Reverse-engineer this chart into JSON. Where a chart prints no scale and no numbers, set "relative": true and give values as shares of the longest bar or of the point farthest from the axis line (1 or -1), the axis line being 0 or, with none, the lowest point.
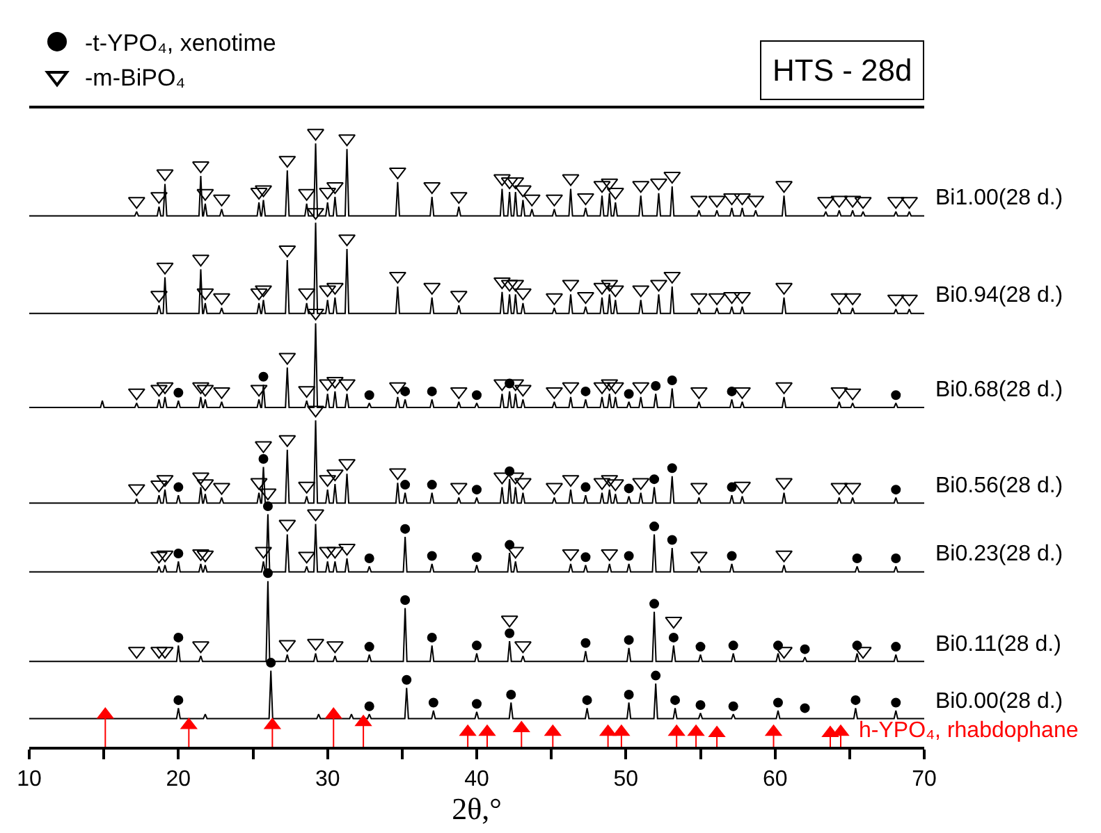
{
  "chart_data": {
    "type": "line",
    "title": "HTS - 28d",
    "xlabel": "2θ,°",
    "relative": true,
    "xlim": [
      10,
      70
    ],
    "xticks": [
      10,
      {
        "value": 15,
        "label": null
      },
      20,
      {
        "value": 25,
        "label": null
      },
      30,
      {
        "value": 35,
        "label": null
      },
      40,
      {
        "value": 45,
        "label": null
      },
      50,
      {
        "value": 55,
        "label": null
      },
      60,
      {
        "value": 65,
        "label": null
      },
      70
    ],
    "tick_labels": "x",
    "legend": "top left",
    "series": [
      {
        "name": "Bi1.00(28 d.)",
        "color": "#000000",
        "x": [
          10,
          17.08,
          17.2,
          17.32,
          18.58,
          18.7,
          18.82,
          18.98,
          19.1,
          19.22,
          21.38,
          21.5,
          21.62,
          21.68,
          21.8,
          21.92,
          22.78,
          22.9,
          23.02,
          25.28,
          25.4,
          25.52,
          25.58,
          25.7,
          25.82,
          27.18,
          27.3,
          27.42,
          28.48,
          28.6,
          28.72,
          29.08,
          29.2,
          29.32,
          29.88,
          30.0,
          30.12,
          30.38,
          30.5,
          30.62,
          31.18,
          31.3,
          31.42,
          34.58,
          34.7,
          34.82,
          36.88,
          37.0,
          37.12,
          38.68,
          38.8,
          38.92,
          41.58,
          41.7,
          41.82,
          42.08,
          42.2,
          42.32,
          42.48,
          42.6,
          42.72,
          42.98,
          43.1,
          43.22,
          43.58,
          43.7,
          43.82,
          45.08,
          45.2,
          45.32,
          46.18,
          46.3,
          46.42,
          47.18,
          47.3,
          47.42,
          48.28,
          48.4,
          48.52,
          48.78,
          48.9,
          49.02,
          49.18,
          49.3,
          49.42,
          50.88,
          51.0,
          51.12,
          52.08,
          52.2,
          52.32,
          52.98,
          53.1,
          53.22,
          54.78,
          54.9,
          55.02,
          55.98,
          56.1,
          56.22,
          56.98,
          57.1,
          57.22,
          57.68,
          57.8,
          57.92,
          58.58,
          58.7,
          58.82,
          60.48,
          60.6,
          60.72,
          63.28,
          63.4,
          63.52,
          64.18,
          64.3,
          64.42,
          65.08,
          65.2,
          65.32,
          65.78,
          65.9,
          66.02,
          67.98,
          68.1,
          68.22,
          68.88,
          69.0,
          69.12,
          70
        ],
        "values": [
          0.865,
          0.865,
          0.872,
          0.865,
          0.865,
          0.88,
          0.865,
          0.865,
          0.917,
          0.865,
          0.865,
          0.93,
          0.865,
          0.865,
          0.885,
          0.865,
          0.865,
          0.876,
          0.865,
          0.865,
          0.887,
          0.865,
          0.865,
          0.891,
          0.865,
          0.865,
          0.939,
          0.865,
          0.865,
          0.885,
          0.865,
          0.865,
          0.983,
          0.865,
          0.865,
          0.887,
          0.865,
          0.865,
          0.896,
          0.865,
          0.865,
          0.974,
          0.865,
          0.865,
          0.92,
          0.865,
          0.865,
          0.896,
          0.865,
          0.865,
          0.88,
          0.865,
          0.865,
          0.909,
          0.865,
          0.865,
          0.904,
          0.865,
          0.865,
          0.904,
          0.865,
          0.865,
          0.891,
          0.865,
          0.865,
          0.876,
          0.865,
          0.865,
          0.876,
          0.865,
          0.865,
          0.909,
          0.865,
          0.865,
          0.878,
          0.865,
          0.865,
          0.898,
          0.865,
          0.865,
          0.902,
          0.865,
          0.865,
          0.887,
          0.865,
          0.865,
          0.898,
          0.865,
          0.865,
          0.902,
          0.865,
          0.865,
          0.913,
          0.865,
          0.865,
          0.874,
          0.865,
          0.865,
          0.874,
          0.865,
          0.865,
          0.878,
          0.865,
          0.865,
          0.878,
          0.865,
          0.865,
          0.874,
          0.865,
          0.865,
          0.898,
          0.865,
          0.865,
          0.872,
          0.865,
          0.865,
          0.874,
          0.865,
          0.865,
          0.874,
          0.865,
          0.865,
          0.872,
          0.865,
          0.865,
          0.872,
          0.865,
          0.865,
          0.872,
          0.865,
          0.865
        ]
      },
      {
        "name": "Bi0.94(28 d.)",
        "color": "#000000",
        "x": [
          10,
          18.58,
          18.7,
          18.82,
          18.98,
          19.1,
          19.22,
          21.38,
          21.5,
          21.62,
          21.68,
          21.8,
          21.92,
          22.78,
          22.9,
          23.02,
          25.28,
          25.4,
          25.52,
          25.58,
          25.7,
          25.82,
          27.18,
          27.3,
          27.42,
          28.48,
          28.6,
          28.72,
          29.08,
          29.2,
          29.32,
          29.88,
          30.0,
          30.12,
          30.38,
          30.5,
          30.62,
          31.18,
          31.3,
          31.42,
          34.58,
          34.7,
          34.82,
          36.88,
          37.0,
          37.12,
          38.68,
          38.8,
          38.92,
          41.58,
          41.7,
          41.82,
          42.08,
          42.2,
          42.32,
          42.48,
          42.6,
          42.72,
          42.98,
          43.1,
          43.22,
          45.08,
          45.2,
          45.32,
          46.18,
          46.3,
          46.42,
          47.18,
          47.3,
          47.42,
          48.28,
          48.4,
          48.52,
          48.78,
          48.9,
          49.02,
          49.18,
          49.3,
          49.42,
          50.88,
          51.0,
          51.12,
          52.08,
          52.2,
          52.32,
          52.98,
          53.1,
          53.22,
          54.78,
          54.9,
          55.02,
          55.98,
          56.1,
          56.22,
          56.98,
          57.1,
          57.22,
          57.68,
          57.8,
          57.92,
          60.48,
          60.6,
          60.72,
          64.18,
          64.3,
          64.42,
          65.08,
          65.2,
          65.32,
          67.98,
          68.1,
          68.22,
          68.88,
          69.0,
          69.12,
          70
        ],
        "values": [
          0.706,
          0.706,
          0.719,
          0.706,
          0.706,
          0.765,
          0.706,
          0.706,
          0.778,
          0.706,
          0.706,
          0.723,
          0.706,
          0.706,
          0.715,
          0.706,
          0.706,
          0.723,
          0.706,
          0.706,
          0.728,
          0.706,
          0.706,
          0.793,
          0.706,
          0.706,
          0.723,
          0.706,
          0.706,
          0.854,
          0.706,
          0.706,
          0.728,
          0.706,
          0.706,
          0.732,
          0.706,
          0.706,
          0.811,
          0.706,
          0.706,
          0.75,
          0.706,
          0.706,
          0.732,
          0.706,
          0.706,
          0.719,
          0.706,
          0.706,
          0.741,
          0.706,
          0.706,
          0.737,
          0.706,
          0.706,
          0.737,
          0.706,
          0.706,
          0.723,
          0.706,
          0.706,
          0.715,
          0.706,
          0.706,
          0.737,
          0.706,
          0.706,
          0.717,
          0.706,
          0.706,
          0.732,
          0.706,
          0.706,
          0.737,
          0.706,
          0.706,
          0.728,
          0.706,
          0.706,
          0.728,
          0.706,
          0.706,
          0.737,
          0.706,
          0.706,
          0.75,
          0.706,
          0.706,
          0.715,
          0.706,
          0.706,
          0.715,
          0.706,
          0.706,
          0.717,
          0.706,
          0.706,
          0.717,
          0.706,
          0.706,
          0.732,
          0.706,
          0.706,
          0.715,
          0.706,
          0.706,
          0.715,
          0.706,
          0.706,
          0.713,
          0.706,
          0.706,
          0.713,
          0.706,
          0.706
        ]
      },
      {
        "name": "Bi0.68(28 d.)",
        "color": "#000000",
        "x": [
          10,
          14.78,
          14.9,
          15.02,
          17.08,
          17.2,
          17.32,
          18.58,
          18.7,
          18.82,
          18.98,
          19.1,
          19.22,
          19.88,
          20.0,
          20.12,
          21.38,
          21.5,
          21.62,
          21.68,
          21.8,
          21.92,
          22.78,
          22.9,
          23.02,
          25.28,
          25.4,
          25.52,
          25.58,
          25.7,
          25.82,
          27.18,
          27.3,
          27.42,
          28.48,
          28.6,
          28.72,
          29.08,
          29.2,
          29.32,
          29.88,
          30.0,
          30.12,
          30.38,
          30.5,
          30.62,
          31.18,
          31.3,
          31.42,
          32.68,
          32.8,
          32.92,
          34.58,
          34.7,
          34.82,
          35.08,
          35.2,
          35.32,
          36.88,
          37.0,
          37.12,
          38.68,
          38.8,
          38.92,
          39.88,
          40.0,
          40.12,
          41.58,
          41.7,
          41.82,
          42.08,
          42.2,
          42.32,
          42.48,
          42.6,
          42.72,
          42.98,
          43.1,
          43.22,
          45.08,
          45.2,
          45.32,
          46.18,
          46.3,
          46.42,
          47.18,
          47.3,
          47.42,
          48.28,
          48.4,
          48.52,
          48.78,
          48.9,
          49.02,
          49.18,
          49.3,
          49.42,
          50.08,
          50.2,
          50.32,
          50.88,
          51.0,
          51.12,
          51.88,
          52.0,
          52.12,
          52.98,
          53.1,
          53.22,
          54.78,
          54.9,
          55.02,
          56.98,
          57.1,
          57.22,
          57.68,
          57.8,
          57.92,
          60.48,
          60.6,
          60.72,
          64.18,
          64.3,
          64.42,
          65.08,
          65.2,
          65.32,
          67.98,
          68.1,
          68.22,
          70
        ],
        "values": [
          0.553,
          0.553,
          0.564,
          0.553,
          0.553,
          0.56,
          0.553,
          0.553,
          0.566,
          0.553,
          0.553,
          0.57,
          0.553,
          0.553,
          0.564,
          0.553,
          0.553,
          0.57,
          0.553,
          0.553,
          0.566,
          0.553,
          0.553,
          0.562,
          0.553,
          0.553,
          0.566,
          0.553,
          0.553,
          0.59,
          0.553,
          0.553,
          0.618,
          0.553,
          0.553,
          0.564,
          0.553,
          0.553,
          0.69,
          0.553,
          0.553,
          0.575,
          0.553,
          0.553,
          0.579,
          0.553,
          0.553,
          0.575,
          0.553,
          0.553,
          0.56,
          0.553,
          0.553,
          0.57,
          0.553,
          0.553,
          0.566,
          0.553,
          0.553,
          0.566,
          0.553,
          0.553,
          0.562,
          0.553,
          0.553,
          0.56,
          0.553,
          0.553,
          0.575,
          0.553,
          0.553,
          0.579,
          0.553,
          0.553,
          0.575,
          0.553,
          0.553,
          0.566,
          0.553,
          0.553,
          0.562,
          0.553,
          0.553,
          0.57,
          0.553,
          0.553,
          0.566,
          0.553,
          0.553,
          0.57,
          0.553,
          0.553,
          0.575,
          0.553,
          0.553,
          0.57,
          0.553,
          0.553,
          0.562,
          0.553,
          0.553,
          0.57,
          0.553,
          0.553,
          0.575,
          0.553,
          0.553,
          0.584,
          0.553,
          0.553,
          0.562,
          0.553,
          0.553,
          0.566,
          0.553,
          0.553,
          0.562,
          0.553,
          0.553,
          0.57,
          0.553,
          0.553,
          0.562,
          0.553,
          0.553,
          0.56,
          0.553,
          0.553,
          0.56,
          0.553,
          0.553
        ]
      },
      {
        "name": "Bi0.56(28 d.)",
        "color": "#000000",
        "x": [
          10,
          17.08,
          17.2,
          17.32,
          18.58,
          18.7,
          18.82,
          18.98,
          19.1,
          19.22,
          19.88,
          20.0,
          20.12,
          21.38,
          21.5,
          21.62,
          21.68,
          21.8,
          21.92,
          22.78,
          22.9,
          23.02,
          25.28,
          25.4,
          25.52,
          25.58,
          25.7,
          25.82,
          27.18,
          27.3,
          27.42,
          28.48,
          28.6,
          28.72,
          29.08,
          29.2,
          29.32,
          29.88,
          30.0,
          30.12,
          30.38,
          30.5,
          30.62,
          31.18,
          31.3,
          31.42,
          34.58,
          34.7,
          34.82,
          35.08,
          35.2,
          35.32,
          36.88,
          37.0,
          37.12,
          38.68,
          38.8,
          38.92,
          39.88,
          40.0,
          40.12,
          41.58,
          41.7,
          41.82,
          42.08,
          42.2,
          42.32,
          42.48,
          42.6,
          42.72,
          42.98,
          43.1,
          43.22,
          45.08,
          45.2,
          45.32,
          46.18,
          46.3,
          46.42,
          47.18,
          47.3,
          47.42,
          48.28,
          48.4,
          48.52,
          48.78,
          48.9,
          49.02,
          49.18,
          49.3,
          49.42,
          50.08,
          50.2,
          50.32,
          50.88,
          51.0,
          51.12,
          51.78,
          51.9,
          52.02,
          52.98,
          53.1,
          53.22,
          54.78,
          54.9,
          55.02,
          56.98,
          57.1,
          57.22,
          57.68,
          57.8,
          57.92,
          60.48,
          60.6,
          60.72,
          64.18,
          64.3,
          64.42,
          65.08,
          65.2,
          65.32,
          67.98,
          68.1,
          68.22,
          70
        ],
        "values": [
          0.397,
          0.397,
          0.404,
          0.397,
          0.397,
          0.41,
          0.397,
          0.397,
          0.419,
          0.397,
          0.397,
          0.41,
          0.397,
          0.397,
          0.423,
          0.397,
          0.397,
          0.412,
          0.397,
          0.397,
          0.406,
          0.397,
          0.397,
          0.414,
          0.397,
          0.397,
          0.456,
          0.397,
          0.397,
          0.484,
          0.397,
          0.397,
          0.408,
          0.397,
          0.397,
          0.532,
          0.397,
          0.397,
          0.419,
          0.397,
          0.397,
          0.428,
          0.397,
          0.397,
          0.445,
          0.397,
          0.397,
          0.43,
          0.397,
          0.397,
          0.414,
          0.397,
          0.397,
          0.414,
          0.397,
          0.397,
          0.406,
          0.397,
          0.397,
          0.406,
          0.397,
          0.397,
          0.423,
          0.397,
          0.397,
          0.436,
          0.397,
          0.397,
          0.423,
          0.397,
          0.397,
          0.414,
          0.397,
          0.397,
          0.406,
          0.397,
          0.397,
          0.419,
          0.397,
          0.397,
          0.41,
          0.397,
          0.397,
          0.414,
          0.397,
          0.397,
          0.419,
          0.397,
          0.397,
          0.412,
          0.397,
          0.397,
          0.408,
          0.397,
          0.397,
          0.414,
          0.397,
          0.397,
          0.423,
          0.397,
          0.397,
          0.441,
          0.397,
          0.397,
          0.406,
          0.397,
          0.397,
          0.41,
          0.397,
          0.397,
          0.408,
          0.397,
          0.397,
          0.414,
          0.397,
          0.397,
          0.406,
          0.397,
          0.397,
          0.406,
          0.397,
          0.397,
          0.406,
          0.397,
          0.397
        ]
      },
      {
        "name": "Bi0.23(28 d.)",
        "color": "#000000",
        "x": [
          10,
          18.58,
          18.7,
          18.82,
          18.98,
          19.1,
          19.22,
          19.88,
          20.0,
          20.12,
          21.38,
          21.5,
          21.62,
          21.68,
          21.8,
          21.92,
          25.58,
          25.7,
          25.82,
          25.88,
          26.0,
          26.12,
          27.18,
          27.3,
          27.42,
          28.48,
          28.6,
          28.72,
          29.08,
          29.2,
          29.32,
          29.88,
          30.0,
          30.12,
          30.38,
          30.5,
          30.62,
          31.18,
          31.3,
          31.42,
          32.68,
          32.8,
          32.92,
          35.08,
          35.2,
          35.32,
          36.88,
          37.0,
          37.12,
          39.88,
          40.0,
          40.12,
          42.08,
          42.2,
          42.32,
          42.48,
          42.6,
          42.72,
          46.18,
          46.3,
          46.42,
          47.18,
          47.3,
          47.42,
          48.78,
          48.9,
          49.02,
          50.08,
          50.2,
          50.32,
          51.78,
          51.9,
          52.02,
          52.98,
          53.1,
          53.22,
          54.78,
          54.9,
          55.02,
          56.98,
          57.1,
          57.22,
          60.48,
          60.6,
          60.72,
          65.38,
          65.5,
          65.62,
          67.98,
          68.1,
          68.22,
          70
        ],
        "values": [
          0.285,
          0.285,
          0.294,
          0.285,
          0.285,
          0.296,
          0.285,
          0.285,
          0.302,
          0.285,
          0.285,
          0.298,
          0.285,
          0.285,
          0.296,
          0.285,
          0.285,
          0.302,
          0.285,
          0.285,
          0.379,
          0.285,
          0.285,
          0.346,
          0.285,
          0.285,
          0.294,
          0.285,
          0.285,
          0.363,
          0.285,
          0.285,
          0.302,
          0.285,
          0.285,
          0.302,
          0.285,
          0.285,
          0.307,
          0.285,
          0.285,
          0.294,
          0.285,
          0.285,
          0.342,
          0.285,
          0.285,
          0.298,
          0.285,
          0.285,
          0.296,
          0.285,
          0.285,
          0.316,
          0.285,
          0.285,
          0.302,
          0.285,
          0.285,
          0.298,
          0.285,
          0.285,
          0.296,
          0.285,
          0.285,
          0.298,
          0.285,
          0.285,
          0.298,
          0.285,
          0.285,
          0.346,
          0.285,
          0.285,
          0.324,
          0.285,
          0.285,
          0.294,
          0.285,
          0.285,
          0.298,
          0.285,
          0.285,
          0.296,
          0.285,
          0.285,
          0.294,
          0.285,
          0.285,
          0.294,
          0.285,
          0.285
        ]
      },
      {
        "name": "Bi0.11(28 d.)",
        "color": "#000000",
        "x": [
          10,
          19.88,
          20.0,
          20.12,
          21.38,
          21.5,
          21.62,
          25.88,
          26.0,
          26.12,
          27.18,
          27.3,
          27.42,
          29.08,
          29.2,
          29.32,
          30.38,
          30.5,
          30.62,
          32.68,
          32.8,
          32.92,
          35.08,
          35.2,
          35.32,
          36.88,
          37.0,
          37.12,
          39.88,
          40.0,
          40.12,
          42.08,
          42.2,
          42.32,
          42.98,
          43.1,
          43.22,
          47.18,
          47.3,
          47.42,
          50.08,
          50.2,
          50.32,
          51.78,
          51.9,
          52.02,
          53.08,
          53.2,
          53.32,
          54.88,
          55.0,
          55.12,
          57.08,
          57.2,
          57.32,
          60.08,
          60.2,
          60.32,
          61.88,
          62.0,
          62.12,
          65.38,
          65.5,
          65.62,
          67.98,
          68.1,
          68.22,
          70
        ],
        "values": [
          0.139,
          0.139,
          0.165,
          0.139,
          0.139,
          0.148,
          0.139,
          0.139,
          0.27,
          0.139,
          0.139,
          0.15,
          0.139,
          0.139,
          0.152,
          0.139,
          0.139,
          0.148,
          0.139,
          0.139,
          0.15,
          0.139,
          0.139,
          0.226,
          0.139,
          0.139,
          0.165,
          0.139,
          0.139,
          0.152,
          0.139,
          0.139,
          0.172,
          0.139,
          0.139,
          0.148,
          0.139,
          0.139,
          0.156,
          0.139,
          0.139,
          0.161,
          0.139,
          0.139,
          0.22,
          0.139,
          0.139,
          0.165,
          0.139,
          0.139,
          0.15,
          0.139,
          0.139,
          0.152,
          0.139,
          0.139,
          0.152,
          0.139,
          0.139,
          0.146,
          0.139,
          0.139,
          0.152,
          0.139,
          0.139,
          0.15,
          0.139,
          0.139
        ]
      },
      {
        "name": "Bi0.00(28 d.)",
        "color": "#000000",
        "x": [
          10,
          19.88,
          20.0,
          20.12,
          21.68,
          21.8,
          21.92,
          26.08,
          26.2,
          26.32,
          29.28,
          29.4,
          29.52,
          31.48,
          31.6,
          31.72,
          32.68,
          32.8,
          32.92,
          35.18,
          35.3,
          35.42,
          36.98,
          37.1,
          37.22,
          39.88,
          40.0,
          40.12,
          42.18,
          42.3,
          42.42,
          47.28,
          47.4,
          47.52,
          50.08,
          50.2,
          50.32,
          51.88,
          52.0,
          52.12,
          53.18,
          53.3,
          53.42,
          54.88,
          55.0,
          55.12,
          57.08,
          57.2,
          57.32,
          60.08,
          60.2,
          60.32,
          65.28,
          65.4,
          65.52,
          67.98,
          68.1,
          68.22,
          70
        ],
        "values": [
          0.046,
          0.046,
          0.063,
          0.046,
          0.046,
          0.053,
          0.046,
          0.046,
          0.124,
          0.046,
          0.046,
          0.053,
          0.046,
          0.046,
          0.053,
          0.046,
          0.046,
          0.053,
          0.046,
          0.046,
          0.096,
          0.046,
          0.046,
          0.059,
          0.046,
          0.046,
          0.057,
          0.046,
          0.046,
          0.072,
          0.046,
          0.046,
          0.063,
          0.046,
          0.046,
          0.072,
          0.046,
          0.046,
          0.103,
          0.046,
          0.046,
          0.063,
          0.046,
          0.046,
          0.055,
          0.046,
          0.046,
          0.053,
          0.046,
          0.046,
          0.059,
          0.046,
          0.046,
          0.063,
          0.046,
          0.046,
          0.059,
          0.046,
          0.046
        ]
      },
      {
        "name": "-t-YPO₄, xenotime",
        "type": "scatter",
        "marker": "circle",
        "color": "#000000",
        "x": [
          20.0,
          25.7,
          32.8,
          35.2,
          37.0,
          40.0,
          42.2,
          47.3,
          50.2,
          52.0,
          53.1,
          57.1,
          68.1,
          20.0,
          25.7,
          35.2,
          37.0,
          40.0,
          42.2,
          47.3,
          50.2,
          51.9,
          53.1,
          57.1,
          68.1,
          20.0,
          26.0,
          32.8,
          35.2,
          37.0,
          40.0,
          42.2,
          47.3,
          50.2,
          51.9,
          53.1,
          57.1,
          65.5,
          68.1,
          20.0,
          26.0,
          32.8,
          35.2,
          37.0,
          40.0,
          42.2,
          47.3,
          50.2,
          51.9,
          53.2,
          55.0,
          57.2,
          60.2,
          62.0,
          65.5,
          68.1,
          20.0,
          26.2,
          32.8,
          35.3,
          37.1,
          40.0,
          42.3,
          47.4,
          50.2,
          52.0,
          53.3,
          55.0,
          57.2,
          60.2,
          62.0,
          65.4,
          68.1
        ],
        "values": [
          0.577,
          0.603,
          0.573,
          0.579,
          0.579,
          0.573,
          0.592,
          0.579,
          0.575,
          0.588,
          0.597,
          0.579,
          0.573,
          0.423,
          0.469,
          0.427,
          0.427,
          0.419,
          0.449,
          0.423,
          0.421,
          0.436,
          0.454,
          0.423,
          0.419,
          0.315,
          0.392,
          0.307,
          0.355,
          0.311,
          0.309,
          0.329,
          0.309,
          0.311,
          0.359,
          0.337,
          0.311,
          0.307,
          0.307,
          0.178,
          0.283,
          0.163,
          0.239,
          0.178,
          0.165,
          0.185,
          0.169,
          0.174,
          0.233,
          0.178,
          0.163,
          0.165,
          0.165,
          0.159,
          0.165,
          0.163,
          0.076,
          0.137,
          0.066,
          0.109,
          0.072,
          0.07,
          0.085,
          0.076,
          0.085,
          0.116,
          0.076,
          0.068,
          0.066,
          0.072,
          0.063,
          0.076,
          0.072
        ]
      },
      {
        "name": "-m-BiPO₄",
        "type": "scatter",
        "marker": "triangle",
        "color": "#000000",
        "x": [
          17.2,
          18.7,
          19.1,
          21.5,
          21.8,
          22.9,
          25.4,
          25.7,
          27.3,
          28.6,
          29.2,
          30.0,
          30.5,
          31.3,
          34.7,
          37.0,
          38.8,
          41.7,
          42.2,
          42.6,
          43.1,
          43.7,
          45.2,
          46.3,
          47.3,
          48.4,
          48.9,
          49.3,
          51.0,
          52.2,
          53.1,
          54.9,
          56.1,
          57.1,
          57.8,
          58.7,
          60.6,
          63.4,
          64.3,
          65.2,
          65.9,
          68.1,
          69.0,
          18.7,
          19.1,
          21.5,
          21.8,
          22.9,
          25.4,
          25.7,
          27.3,
          28.6,
          29.2,
          30.0,
          30.5,
          31.3,
          34.7,
          37.0,
          38.8,
          41.7,
          42.2,
          42.6,
          43.1,
          45.2,
          46.3,
          47.3,
          48.4,
          48.9,
          49.3,
          51.0,
          52.2,
          53.1,
          54.9,
          56.1,
          57.1,
          57.8,
          60.6,
          64.3,
          65.2,
          68.1,
          69.0,
          17.2,
          18.7,
          19.1,
          21.5,
          21.8,
          22.9,
          25.4,
          27.3,
          28.6,
          29.2,
          30.0,
          30.5,
          31.3,
          34.7,
          38.8,
          41.7,
          42.6,
          43.1,
          45.2,
          46.3,
          48.4,
          48.9,
          49.3,
          51.0,
          54.9,
          57.8,
          60.6,
          64.3,
          65.2,
          17.2,
          18.7,
          19.1,
          21.5,
          21.8,
          22.9,
          25.4,
          25.7,
          27.3,
          28.6,
          29.2,
          30.0,
          30.5,
          31.3,
          34.7,
          38.8,
          41.7,
          42.6,
          43.1,
          45.2,
          46.3,
          48.4,
          48.9,
          49.3,
          51.0,
          54.9,
          57.8,
          60.6,
          64.3,
          65.2,
          18.7,
          19.1,
          21.5,
          21.8,
          25.7,
          26.0,
          27.3,
          28.6,
          29.2,
          30.0,
          30.5,
          31.3,
          42.6,
          46.3,
          48.9,
          54.9,
          60.6,
          17.2,
          18.7,
          19.1,
          21.5,
          27.3,
          29.2,
          30.5,
          42.2,
          43.1,
          53.2,
          60.6,
          65.9
        ],
        "values": [
          0.889,
          0.897,
          0.934,
          0.947,
          0.902,
          0.893,
          0.904,
          0.908,
          0.956,
          0.902,
          1.0,
          0.904,
          0.913,
          0.991,
          0.937,
          0.913,
          0.897,
          0.926,
          0.921,
          0.921,
          0.908,
          0.893,
          0.893,
          0.926,
          0.895,
          0.915,
          0.919,
          0.904,
          0.915,
          0.919,
          0.93,
          0.891,
          0.891,
          0.895,
          0.895,
          0.891,
          0.915,
          0.889,
          0.891,
          0.891,
          0.889,
          0.889,
          0.889,
          0.736,
          0.782,
          0.795,
          0.74,
          0.732,
          0.74,
          0.745,
          0.81,
          0.74,
          0.871,
          0.745,
          0.749,
          0.828,
          0.767,
          0.749,
          0.736,
          0.758,
          0.754,
          0.754,
          0.74,
          0.732,
          0.754,
          0.734,
          0.749,
          0.754,
          0.745,
          0.745,
          0.754,
          0.767,
          0.732,
          0.732,
          0.734,
          0.734,
          0.749,
          0.732,
          0.732,
          0.73,
          0.73,
          0.577,
          0.583,
          0.587,
          0.587,
          0.583,
          0.579,
          0.583,
          0.635,
          0.581,
          0.707,
          0.592,
          0.596,
          0.592,
          0.587,
          0.579,
          0.592,
          0.592,
          0.583,
          0.579,
          0.587,
          0.587,
          0.592,
          0.587,
          0.587,
          0.579,
          0.579,
          0.587,
          0.579,
          0.577,
          0.421,
          0.427,
          0.436,
          0.44,
          0.429,
          0.423,
          0.431,
          0.491,
          0.501,
          0.425,
          0.549,
          0.436,
          0.445,
          0.462,
          0.447,
          0.423,
          0.44,
          0.44,
          0.431,
          0.423,
          0.436,
          0.431,
          0.436,
          0.429,
          0.431,
          0.423,
          0.425,
          0.431,
          0.423,
          0.423,
          0.311,
          0.313,
          0.315,
          0.313,
          0.319,
          0.414,
          0.363,
          0.311,
          0.38,
          0.319,
          0.319,
          0.324,
          0.319,
          0.315,
          0.315,
          0.311,
          0.313,
          0.156,
          0.156,
          0.156,
          0.165,
          0.167,
          0.169,
          0.165,
          0.207,
          0.165,
          0.205,
          0.156,
          0.156
        ]
      },
      {
        "name": "h-YPO₄, rhabdophane",
        "type": "lollipop",
        "marker": "triangle",
        "color": "#ff0000",
        "x": [
          15.1,
          20.7,
          26.3,
          30.4,
          32.4,
          39.4,
          40.7,
          43.0,
          45.1,
          48.8,
          49.7,
          53.4,
          54.7,
          56.1,
          59.9,
          63.7,
          64.4
        ],
        "values": [
          0.052,
          0.035,
          0.035,
          0.052,
          0.04,
          0.024,
          0.024,
          0.03,
          0.024,
          0.024,
          0.024,
          0.024,
          0.024,
          0.022,
          0.024,
          0.022,
          0.024
        ]
      }
    ]
  }
}
